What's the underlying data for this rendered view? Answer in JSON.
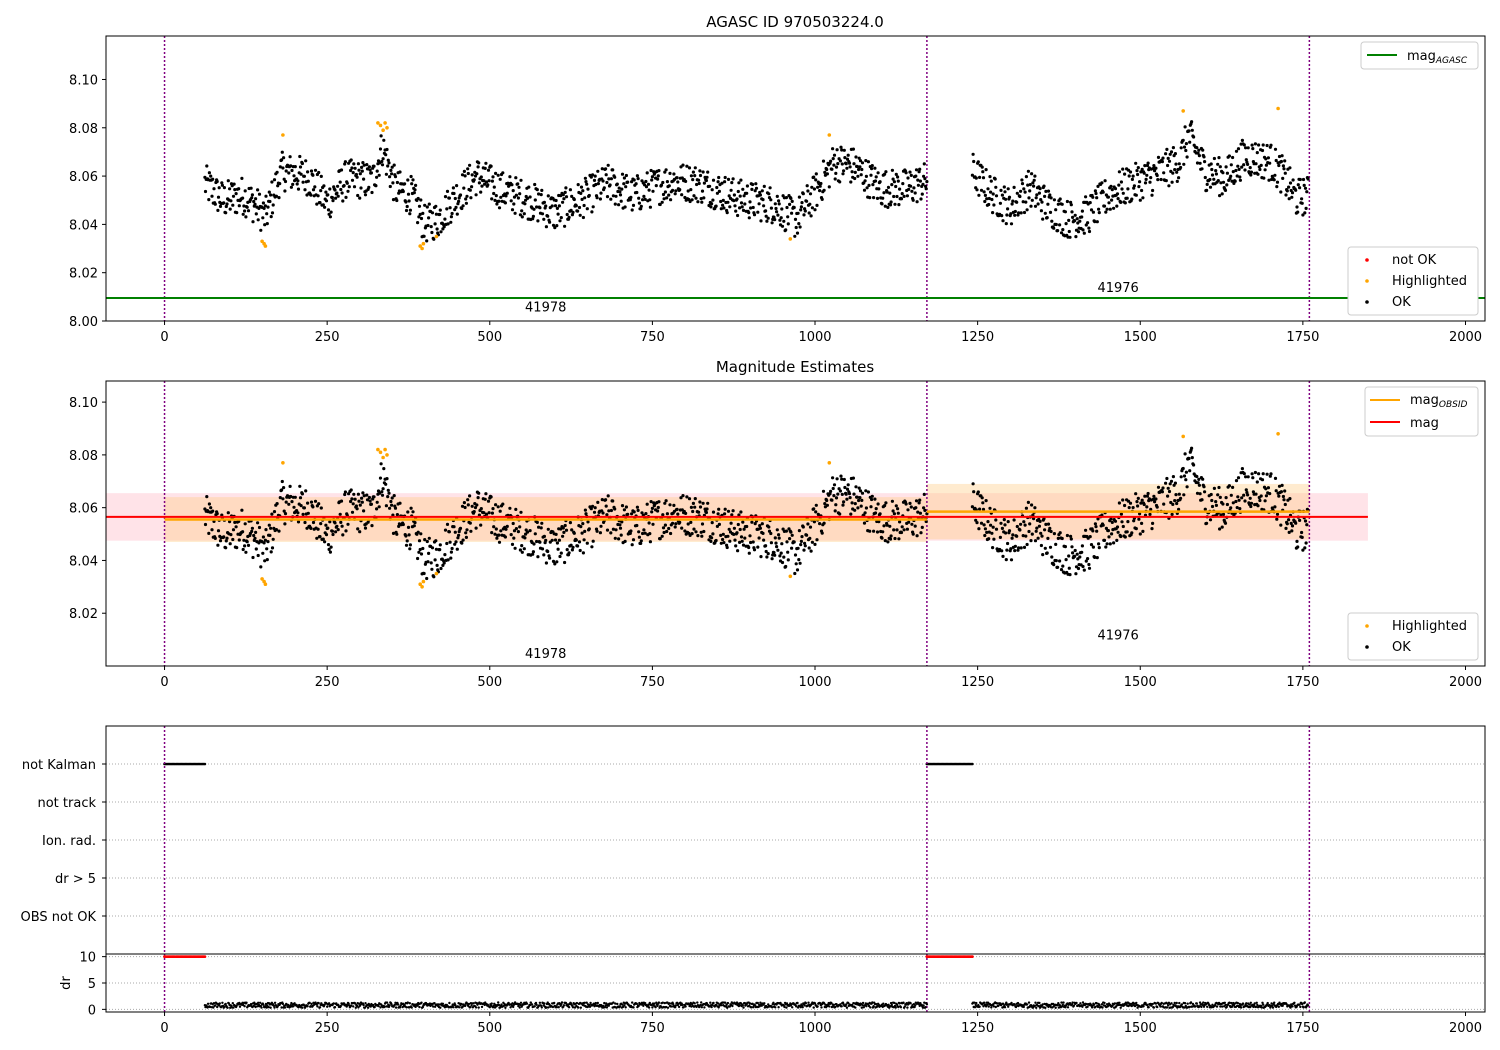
{
  "title": "AGASC ID 970503224.0",
  "colors": {
    "ok": "#000000",
    "highlighted": "#ffa500",
    "not_ok": "#ff0000",
    "mag_agasc": "#008000",
    "mag_obsid": "#ffa500",
    "mag": "#ff0000",
    "obs_boundary": "#800080",
    "mag_band": "#ffc0cb",
    "obsid_band": "#ffcc88"
  },
  "chart_data": [
    {
      "type": "scatter",
      "title": "AGASC ID 970503224.0",
      "xlim": [
        -90,
        2030
      ],
      "ylim": [
        8.0,
        8.118
      ],
      "xticks": [
        "0",
        "250",
        "500",
        "750",
        "1000",
        "1250",
        "1500",
        "1750",
        "2000"
      ],
      "yticks": [
        "8.00",
        "8.02",
        "8.04",
        "8.06",
        "8.08",
        "8.10"
      ],
      "obs_boundaries": [
        0,
        1172,
        1760
      ],
      "obs_labels": [
        {
          "text": "41978",
          "x": 586,
          "y": 8.006
        },
        {
          "text": "41976",
          "x": 1466,
          "y": 8.014
        }
      ],
      "mag_agasc": 8.0095,
      "legend_lines": [
        {
          "label": "mag",
          "subscript": "AGASC",
          "color": "#008000"
        }
      ],
      "legend_points": [
        {
          "label": "not OK",
          "color": "#ff0000"
        },
        {
          "label": "Highlighted",
          "color": "#ffa500"
        },
        {
          "label": "OK",
          "color": "#000000"
        }
      ]
    },
    {
      "type": "scatter",
      "title": "Magnitude Estimates",
      "xlim": [
        -90,
        2030
      ],
      "ylim": [
        8.0,
        8.108
      ],
      "xticks": [
        "0",
        "250",
        "500",
        "750",
        "1000",
        "1250",
        "1500",
        "1750",
        "2000"
      ],
      "yticks": [
        "8.02",
        "8.04",
        "8.06",
        "8.08",
        "8.10"
      ],
      "obs_labels": [
        {
          "text": "41978",
          "x": 586,
          "y": 8.005
        },
        {
          "text": "41976",
          "x": 1466,
          "y": 8.012
        }
      ],
      "mag": {
        "value": 8.0565,
        "low": 8.0475,
        "high": 8.0655,
        "x_range": [
          -90,
          1850
        ]
      },
      "mag_obsid": [
        {
          "x_range": [
            0,
            1172
          ],
          "value": 8.0555,
          "low": 8.047,
          "high": 8.064
        },
        {
          "x_range": [
            1172,
            1760
          ],
          "value": 8.0585,
          "low": 8.048,
          "high": 8.069
        }
      ],
      "legend_lines": [
        {
          "label": "mag",
          "subscript": "OBSID",
          "color": "#ffa500"
        },
        {
          "label": "mag",
          "subscript": "",
          "color": "#ff0000"
        }
      ],
      "legend_points": [
        {
          "label": "Highlighted",
          "color": "#ffa500"
        },
        {
          "label": "OK",
          "color": "#000000"
        }
      ]
    },
    {
      "type": "scatter",
      "title": "",
      "xlim": [
        -90,
        2030
      ],
      "flags": [
        "not Kalman",
        "not track",
        "Ion. rad.",
        "dr > 5",
        "OBS not OK"
      ],
      "flag_segments": [
        {
          "flag": "not Kalman",
          "x_range": [
            0,
            62
          ]
        },
        {
          "flag": "not Kalman",
          "x_range": [
            1172,
            1242
          ]
        }
      ],
      "dr": {
        "ylabel": "dr",
        "yticks": [
          "0",
          "5",
          "10"
        ],
        "ylim": [
          -0.5,
          10.5
        ],
        "clipped_ranges": [
          [
            0,
            62
          ],
          [
            1172,
            1242
          ]
        ],
        "clipped_value": 10,
        "typical": 0.8
      },
      "xticks": [
        "0",
        "250",
        "500",
        "750",
        "1000",
        "1250",
        "1500",
        "1750",
        "2000"
      ]
    }
  ]
}
